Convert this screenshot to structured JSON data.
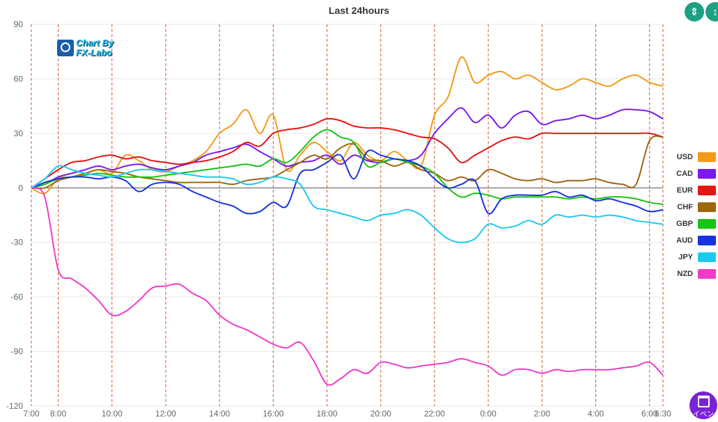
{
  "chart_data": {
    "type": "line",
    "title": "Last 24hours",
    "ylim": [
      -120,
      90
    ],
    "yticks": [
      "90",
      "60",
      "30",
      "0",
      "-30",
      "-60",
      "-90",
      "-120"
    ],
    "ytick_values": [
      90,
      60,
      30,
      0,
      -30,
      -60,
      -90,
      -120
    ],
    "x_start_minutes": 420,
    "x_end_minutes": 1830,
    "xticks": [
      {
        "label": "7:00",
        "t": 420
      },
      {
        "label": "8:00",
        "t": 480
      },
      {
        "label": "10:00",
        "t": 600
      },
      {
        "label": "12:00",
        "t": 720
      },
      {
        "label": "14:00",
        "t": 840
      },
      {
        "label": "16:00",
        "t": 960
      },
      {
        "label": "18:00",
        "t": 1080
      },
      {
        "label": "20:00",
        "t": 1200
      },
      {
        "label": "22:00",
        "t": 1320
      },
      {
        "label": "0:00",
        "t": 1440
      },
      {
        "label": "2:00",
        "t": 1560
      },
      {
        "label": "4:00",
        "t": 1680
      },
      {
        "label": "6:00",
        "t": 1800
      },
      {
        "label": "6:30",
        "t": 1830
      }
    ],
    "x_times": [
      420,
      450,
      480,
      510,
      540,
      570,
      600,
      630,
      660,
      690,
      720,
      750,
      780,
      810,
      840,
      870,
      900,
      930,
      960,
      990,
      1020,
      1050,
      1080,
      1110,
      1140,
      1170,
      1200,
      1230,
      1260,
      1290,
      1320,
      1350,
      1380,
      1410,
      1440,
      1470,
      1500,
      1530,
      1560,
      1590,
      1620,
      1650,
      1680,
      1710,
      1740,
      1770,
      1800,
      1830
    ],
    "legend_position": "right",
    "grid": true,
    "series": [
      {
        "name": "USD",
        "color": "#f39a1a",
        "values": [
          0,
          -3,
          5,
          6,
          8,
          10,
          8,
          18,
          15,
          10,
          9,
          12,
          15,
          20,
          30,
          35,
          43,
          30,
          40,
          10,
          18,
          25,
          20,
          15,
          25,
          18,
          15,
          20,
          15,
          12,
          40,
          50,
          72,
          58,
          62,
          64,
          60,
          62,
          58,
          54,
          56,
          60,
          58,
          56,
          60,
          62,
          58,
          56
        ]
      },
      {
        "name": "CAD",
        "color": "#7b1af0",
        "values": [
          0,
          2,
          6,
          8,
          10,
          12,
          10,
          12,
          13,
          11,
          10,
          12,
          14,
          18,
          20,
          22,
          24,
          20,
          16,
          12,
          14,
          15,
          18,
          13,
          18,
          15,
          14,
          16,
          15,
          18,
          30,
          38,
          44,
          36,
          40,
          33,
          40,
          42,
          35,
          37,
          38,
          40,
          38,
          40,
          43,
          43,
          42,
          38
        ]
      },
      {
        "name": "EUR",
        "color": "#e81414",
        "values": [
          0,
          5,
          10,
          14,
          15,
          17,
          18,
          16,
          17,
          15,
          14,
          13,
          14,
          15,
          17,
          20,
          25,
          23,
          30,
          32,
          33,
          35,
          38,
          37,
          34,
          33,
          33,
          32,
          30,
          28,
          27,
          22,
          14,
          18,
          22,
          26,
          28,
          27,
          30,
          30,
          30,
          30,
          30,
          30,
          30,
          30,
          30,
          28
        ]
      },
      {
        "name": "CHF",
        "color": "#9e6710",
        "values": [
          0,
          0,
          4,
          6,
          8,
          10,
          9,
          8,
          6,
          5,
          4,
          3,
          3,
          3,
          3,
          2,
          4,
          5,
          6,
          10,
          14,
          18,
          16,
          22,
          24,
          16,
          15,
          12,
          14,
          10,
          8,
          4,
          6,
          4,
          10,
          8,
          5,
          4,
          5,
          3,
          4,
          4,
          5,
          3,
          2,
          2,
          26,
          28
        ]
      },
      {
        "name": "GBP",
        "color": "#16c416",
        "values": [
          0,
          2,
          5,
          6,
          7,
          8,
          7,
          6,
          6,
          6,
          7,
          8,
          9,
          10,
          11,
          12,
          13,
          12,
          16,
          14,
          20,
          28,
          32,
          28,
          25,
          12,
          14,
          16,
          14,
          12,
          8,
          0,
          -5,
          -3,
          -4,
          -6,
          -5,
          -5,
          -5,
          -5,
          -6,
          -5,
          -6,
          -5,
          -5,
          -6,
          -8,
          -9
        ]
      },
      {
        "name": "AUD",
        "color": "#1634e0",
        "values": [
          0,
          3,
          5,
          6,
          6,
          5,
          6,
          4,
          -2,
          2,
          3,
          2,
          -2,
          -5,
          -8,
          -10,
          -14,
          -13,
          -8,
          -10,
          8,
          10,
          14,
          18,
          5,
          20,
          18,
          16,
          15,
          12,
          5,
          0,
          2,
          4,
          -14,
          -6,
          -4,
          -4,
          -4,
          -2,
          -5,
          -4,
          -7,
          -6,
          -8,
          -10,
          -13,
          -12
        ]
      },
      {
        "name": "JPY",
        "color": "#1ccaf0",
        "values": [
          0,
          5,
          12,
          10,
          8,
          7,
          6,
          8,
          10,
          10,
          9,
          8,
          7,
          6,
          6,
          5,
          2,
          3,
          6,
          5,
          2,
          -10,
          -12,
          -14,
          -16,
          -18,
          -15,
          -14,
          -12,
          -15,
          -22,
          -28,
          -30,
          -28,
          -20,
          -22,
          -21,
          -18,
          -20,
          -15,
          -16,
          -15,
          -16,
          -15,
          -16,
          -18,
          -19,
          -20
        ]
      },
      {
        "name": "NZD",
        "color": "#f03cc8",
        "values": [
          0,
          -5,
          -45,
          -50,
          -55,
          -62,
          -70,
          -68,
          -62,
          -55,
          -54,
          -53,
          -58,
          -62,
          -70,
          -75,
          -78,
          -82,
          -86,
          -88,
          -85,
          -95,
          -108,
          -105,
          -100,
          -102,
          -96,
          -97,
          -99,
          -98,
          -97,
          -96,
          -94,
          -96,
          -98,
          -103,
          -100,
          -100,
          -102,
          -100,
          -101,
          -100,
          -100,
          -100,
          -99,
          -98,
          -96,
          -103
        ]
      }
    ]
  },
  "logo": {
    "line1": "Chart By",
    "line2": "FX-Labo"
  },
  "controls": {
    "event_label": "イベン"
  }
}
